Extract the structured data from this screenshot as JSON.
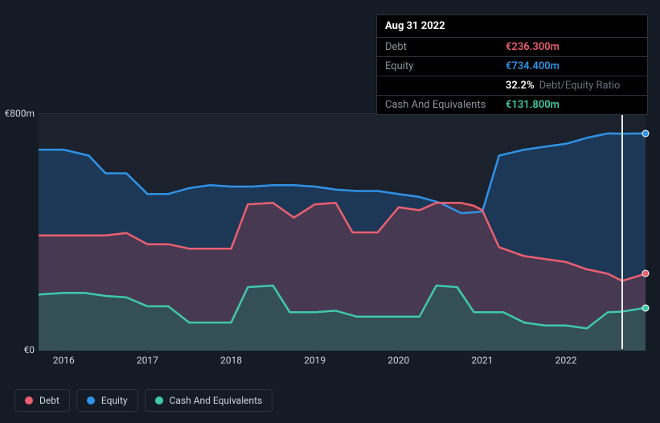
{
  "tooltip": {
    "date": "Aug 31 2022",
    "rows": [
      {
        "label": "Debt",
        "value": "€236.300m",
        "color": "#eb5f6f"
      },
      {
        "label": "Equity",
        "value": "€734.400m",
        "color": "#2f92e6"
      },
      {
        "label": "",
        "value": "32.2%",
        "suffix": "Debt/Equity Ratio",
        "color": "#ffffff"
      },
      {
        "label": "Cash And Equivalents",
        "value": "€131.800m",
        "color": "#3fc9a7"
      }
    ]
  },
  "chart": {
    "type": "area",
    "background_color": "#1b222d",
    "page_background": "#151b24",
    "grid_color": "#2a333f",
    "text_color": "#cdd5df",
    "label_fontsize": 12,
    "y_axis": {
      "min": 0,
      "max": 800,
      "ticks": [
        {
          "value": 800,
          "label": "€800m"
        },
        {
          "value": 0,
          "label": "€0"
        }
      ]
    },
    "x_axis": {
      "min": 2015.7,
      "max": 2022.95,
      "ticks": [
        {
          "value": 2016,
          "label": "2016"
        },
        {
          "value": 2017,
          "label": "2017"
        },
        {
          "value": 2018,
          "label": "2018"
        },
        {
          "value": 2019,
          "label": "2019"
        },
        {
          "value": 2020,
          "label": "2020"
        },
        {
          "value": 2021,
          "label": "2021"
        },
        {
          "value": 2022,
          "label": "2022"
        }
      ]
    },
    "highlight_x": 2022.67,
    "series": [
      {
        "name": "Equity",
        "color": "#2f92e6",
        "fill_color": "#1f4a7a",
        "fill_opacity": 0.55,
        "line_width": 2.5,
        "points": [
          [
            2015.7,
            680
          ],
          [
            2016.0,
            680
          ],
          [
            2016.3,
            660
          ],
          [
            2016.5,
            600
          ],
          [
            2016.75,
            600
          ],
          [
            2017.0,
            530
          ],
          [
            2017.25,
            530
          ],
          [
            2017.5,
            550
          ],
          [
            2017.75,
            560
          ],
          [
            2018.0,
            555
          ],
          [
            2018.25,
            555
          ],
          [
            2018.5,
            560
          ],
          [
            2018.75,
            560
          ],
          [
            2019.0,
            555
          ],
          [
            2019.25,
            545
          ],
          [
            2019.5,
            540
          ],
          [
            2019.75,
            540
          ],
          [
            2020.0,
            530
          ],
          [
            2020.25,
            520
          ],
          [
            2020.5,
            500
          ],
          [
            2020.75,
            465
          ],
          [
            2021.0,
            470
          ],
          [
            2021.2,
            660
          ],
          [
            2021.5,
            680
          ],
          [
            2021.75,
            690
          ],
          [
            2022.0,
            700
          ],
          [
            2022.25,
            720
          ],
          [
            2022.5,
            735
          ],
          [
            2022.67,
            734
          ],
          [
            2022.95,
            735
          ]
        ]
      },
      {
        "name": "Debt",
        "color": "#eb5f6f",
        "fill_color": "#6a3a4e",
        "fill_opacity": 0.55,
        "line_width": 2.5,
        "points": [
          [
            2015.7,
            390
          ],
          [
            2016.0,
            390
          ],
          [
            2016.25,
            390
          ],
          [
            2016.5,
            390
          ],
          [
            2016.75,
            398
          ],
          [
            2017.0,
            360
          ],
          [
            2017.25,
            360
          ],
          [
            2017.5,
            345
          ],
          [
            2017.75,
            345
          ],
          [
            2018.0,
            345
          ],
          [
            2018.2,
            495
          ],
          [
            2018.5,
            500
          ],
          [
            2018.75,
            450
          ],
          [
            2019.0,
            495
          ],
          [
            2019.25,
            500
          ],
          [
            2019.45,
            400
          ],
          [
            2019.75,
            400
          ],
          [
            2020.0,
            485
          ],
          [
            2020.25,
            475
          ],
          [
            2020.45,
            500
          ],
          [
            2020.75,
            500
          ],
          [
            2020.9,
            490
          ],
          [
            2021.0,
            475
          ],
          [
            2021.2,
            350
          ],
          [
            2021.5,
            320
          ],
          [
            2021.75,
            310
          ],
          [
            2022.0,
            300
          ],
          [
            2022.25,
            275
          ],
          [
            2022.5,
            260
          ],
          [
            2022.67,
            236
          ],
          [
            2022.95,
            260
          ]
        ]
      },
      {
        "name": "Cash And Equivalents",
        "color": "#3fc9a7",
        "fill_color": "#2a5f5c",
        "fill_opacity": 0.6,
        "line_width": 2.5,
        "points": [
          [
            2015.7,
            190
          ],
          [
            2016.0,
            195
          ],
          [
            2016.25,
            195
          ],
          [
            2016.5,
            185
          ],
          [
            2016.75,
            180
          ],
          [
            2017.0,
            150
          ],
          [
            2017.25,
            150
          ],
          [
            2017.5,
            95
          ],
          [
            2017.75,
            95
          ],
          [
            2018.0,
            95
          ],
          [
            2018.2,
            215
          ],
          [
            2018.5,
            220
          ],
          [
            2018.7,
            130
          ],
          [
            2019.0,
            130
          ],
          [
            2019.25,
            135
          ],
          [
            2019.5,
            115
          ],
          [
            2019.75,
            115
          ],
          [
            2020.0,
            115
          ],
          [
            2020.25,
            115
          ],
          [
            2020.45,
            220
          ],
          [
            2020.7,
            215
          ],
          [
            2020.9,
            130
          ],
          [
            2021.25,
            130
          ],
          [
            2021.5,
            95
          ],
          [
            2021.75,
            85
          ],
          [
            2022.0,
            85
          ],
          [
            2022.25,
            75
          ],
          [
            2022.5,
            130
          ],
          [
            2022.67,
            132
          ],
          [
            2022.95,
            145
          ]
        ]
      }
    ],
    "end_markers": [
      {
        "x": 2022.95,
        "y": 735,
        "fill": "#2f92e6"
      },
      {
        "x": 2022.95,
        "y": 260,
        "fill": "#eb5f6f"
      },
      {
        "x": 2022.95,
        "y": 145,
        "fill": "#3fc9a7"
      }
    ]
  },
  "legend": {
    "items": [
      {
        "label": "Debt",
        "color": "#eb5f6f"
      },
      {
        "label": "Equity",
        "color": "#2f92e6"
      },
      {
        "label": "Cash And Equivalents",
        "color": "#3fc9a7"
      }
    ]
  }
}
